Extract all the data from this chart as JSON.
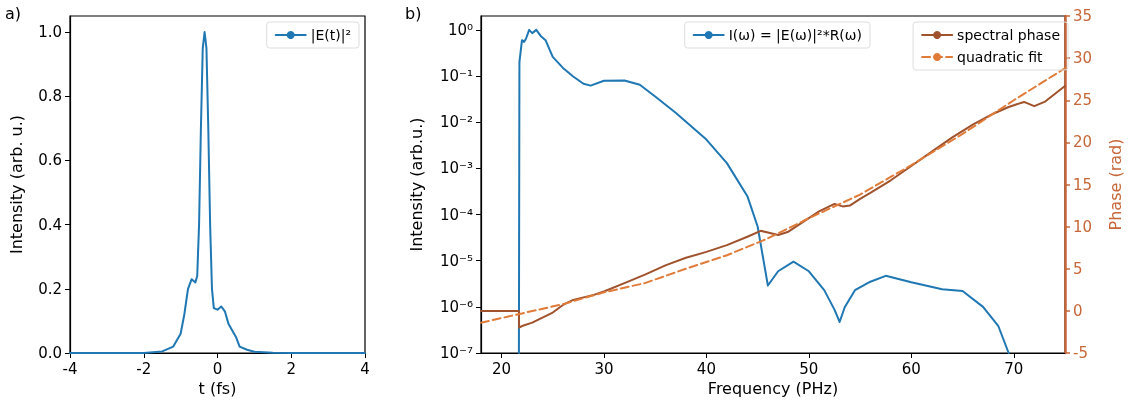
{
  "chart_data": [
    {
      "type": "line",
      "title": "a)",
      "xlabel": "t (fs)",
      "ylabel": "Intensity (arb. u.)",
      "xlim": [
        -4,
        4
      ],
      "xticks": [
        -4,
        -2,
        0,
        2,
        4
      ],
      "ylim": [
        0,
        1.05
      ],
      "yticks": [
        {
          "value": 0,
          "label": "0.0"
        },
        {
          "value": 0.2,
          "label": "0.2"
        },
        {
          "value": 0.4,
          "label": "0.4"
        },
        {
          "value": 0.6,
          "label": "0.6"
        },
        {
          "value": 0.8,
          "label": "0.8"
        },
        {
          "value": 1,
          "label": "1.0"
        }
      ],
      "grid": false,
      "legend": "top right",
      "marker": "none",
      "x": [
        -4,
        -2,
        -1.5,
        -1.2,
        -1.0,
        -0.9,
        -0.8,
        -0.7,
        -0.6,
        -0.55,
        -0.5,
        -0.45,
        -0.4,
        -0.35,
        -0.3,
        -0.25,
        -0.2,
        -0.15,
        -0.1,
        0.0,
        0.1,
        0.2,
        0.3,
        0.4,
        0.5,
        0.6,
        0.8,
        1.0,
        1.5,
        2,
        4
      ],
      "series": [
        {
          "name": "|E(t)|²",
          "color": "#1f77b4",
          "values": [
            0,
            0,
            0.005,
            0.02,
            0.06,
            0.12,
            0.2,
            0.23,
            0.22,
            0.24,
            0.4,
            0.7,
            0.95,
            1.0,
            0.95,
            0.7,
            0.4,
            0.2,
            0.14,
            0.135,
            0.145,
            0.13,
            0.09,
            0.07,
            0.05,
            0.02,
            0.01,
            0.004,
            0.001,
            0,
            0
          ]
        }
      ]
    },
    {
      "type": "line",
      "title": "b)",
      "xlabel": "Frequency (PHz)",
      "ylabel": "Intensity (arb.u.)",
      "y2label": "Phase (rad)",
      "log": "y",
      "xlim": [
        18,
        75
      ],
      "xticks": [
        20,
        30,
        40,
        50,
        60,
        70
      ],
      "ylim": [
        1e-07,
        2
      ],
      "yticks": [
        {
          "value": 1e-07,
          "label": "10⁻⁷"
        },
        {
          "value": 1e-06,
          "label": "10⁻⁶"
        },
        {
          "value": 1e-05,
          "label": "10⁻⁵"
        },
        {
          "value": 0.0001,
          "label": "10⁻⁴"
        },
        {
          "value": 0.001,
          "label": "10⁻³"
        },
        {
          "value": 0.01,
          "label": "10⁻²"
        },
        {
          "value": 0.1,
          "label": "10⁻¹"
        },
        {
          "value": 1,
          "label": "10⁰"
        }
      ],
      "y2lim": [
        -5,
        35
      ],
      "y2ticks": [
        -5,
        0,
        5,
        10,
        15,
        20,
        25,
        30,
        35
      ],
      "grid": false,
      "legend": "top right",
      "marker": "none",
      "series": [
        {
          "name": "I(ω) = |E(ω)|²*R(ω)",
          "color": "#1f77b4",
          "x": [
            21.7,
            21.75,
            22.0,
            22.2,
            22.4,
            22.7,
            23.0,
            23.4,
            23.8,
            24.3,
            25,
            26,
            27,
            28,
            28.7,
            30,
            32,
            33.5,
            35,
            37,
            40,
            42,
            44,
            45,
            46,
            47,
            48.5,
            50,
            51.5,
            52.5,
            53,
            53.5,
            54.5,
            56,
            57.5,
            60,
            63,
            65,
            67,
            68.5,
            69.5
          ],
          "values": [
            1e-07,
            0.2,
            0.6,
            0.55,
            0.65,
            1.0,
            0.85,
            1.0,
            0.75,
            0.6,
            0.26,
            0.15,
            0.098,
            0.068,
            0.062,
            0.079,
            0.08,
            0.065,
            0.036,
            0.016,
            0.0042,
            0.0013,
            0.00025,
            5.5e-05,
            2.9e-06,
            5.9e-06,
            9.5e-06,
            5.9e-06,
            2.3e-06,
            8.7e-07,
            4.7e-07,
            9.8e-07,
            2.3e-06,
            3.5e-06,
            4.7e-06,
            3.4e-06,
            2.4e-06,
            2.2e-06,
            1e-06,
            3.8e-07,
            1e-07
          ]
        },
        {
          "name": "spectral phase",
          "color": "#a0522d",
          "axis": "y2",
          "x": [
            18,
            21.7,
            21.72,
            22,
            23,
            24,
            25,
            26,
            27,
            28,
            29,
            30,
            32,
            34,
            36,
            38,
            40,
            42,
            44,
            45.3,
            46,
            47,
            48,
            49,
            50,
            51,
            52.5,
            53.3,
            54,
            55,
            56,
            58,
            60,
            62,
            64,
            66,
            68,
            69.5,
            71,
            72,
            73,
            75
          ],
          "values": [
            0,
            0,
            -2.0,
            -1.8,
            -1.4,
            -0.8,
            -0.2,
            0.7,
            1.3,
            1.6,
            1.9,
            2.3,
            3.3,
            4.3,
            5.4,
            6.3,
            7.0,
            7.8,
            8.8,
            9.5,
            9.3,
            9.0,
            9.4,
            10.2,
            11.0,
            11.8,
            12.7,
            12.4,
            12.5,
            13.3,
            14.0,
            15.5,
            17.2,
            18.9,
            20.6,
            22.1,
            23.4,
            24.2,
            24.8,
            24.3,
            24.8,
            26.7
          ]
        },
        {
          "name": "quadratic fit",
          "color": "#e07b39",
          "axis": "y2",
          "line_style": "dashed",
          "x": [
            18,
            22,
            26,
            30,
            34,
            38,
            42,
            46,
            50,
            55,
            60,
            65,
            70,
            75
          ],
          "values": [
            -1.4,
            -0.3,
            0.8,
            2.2,
            3.3,
            5.0,
            6.6,
            8.6,
            11.0,
            13.8,
            17.3,
            21.0,
            25.0,
            28.8
          ]
        }
      ]
    }
  ]
}
